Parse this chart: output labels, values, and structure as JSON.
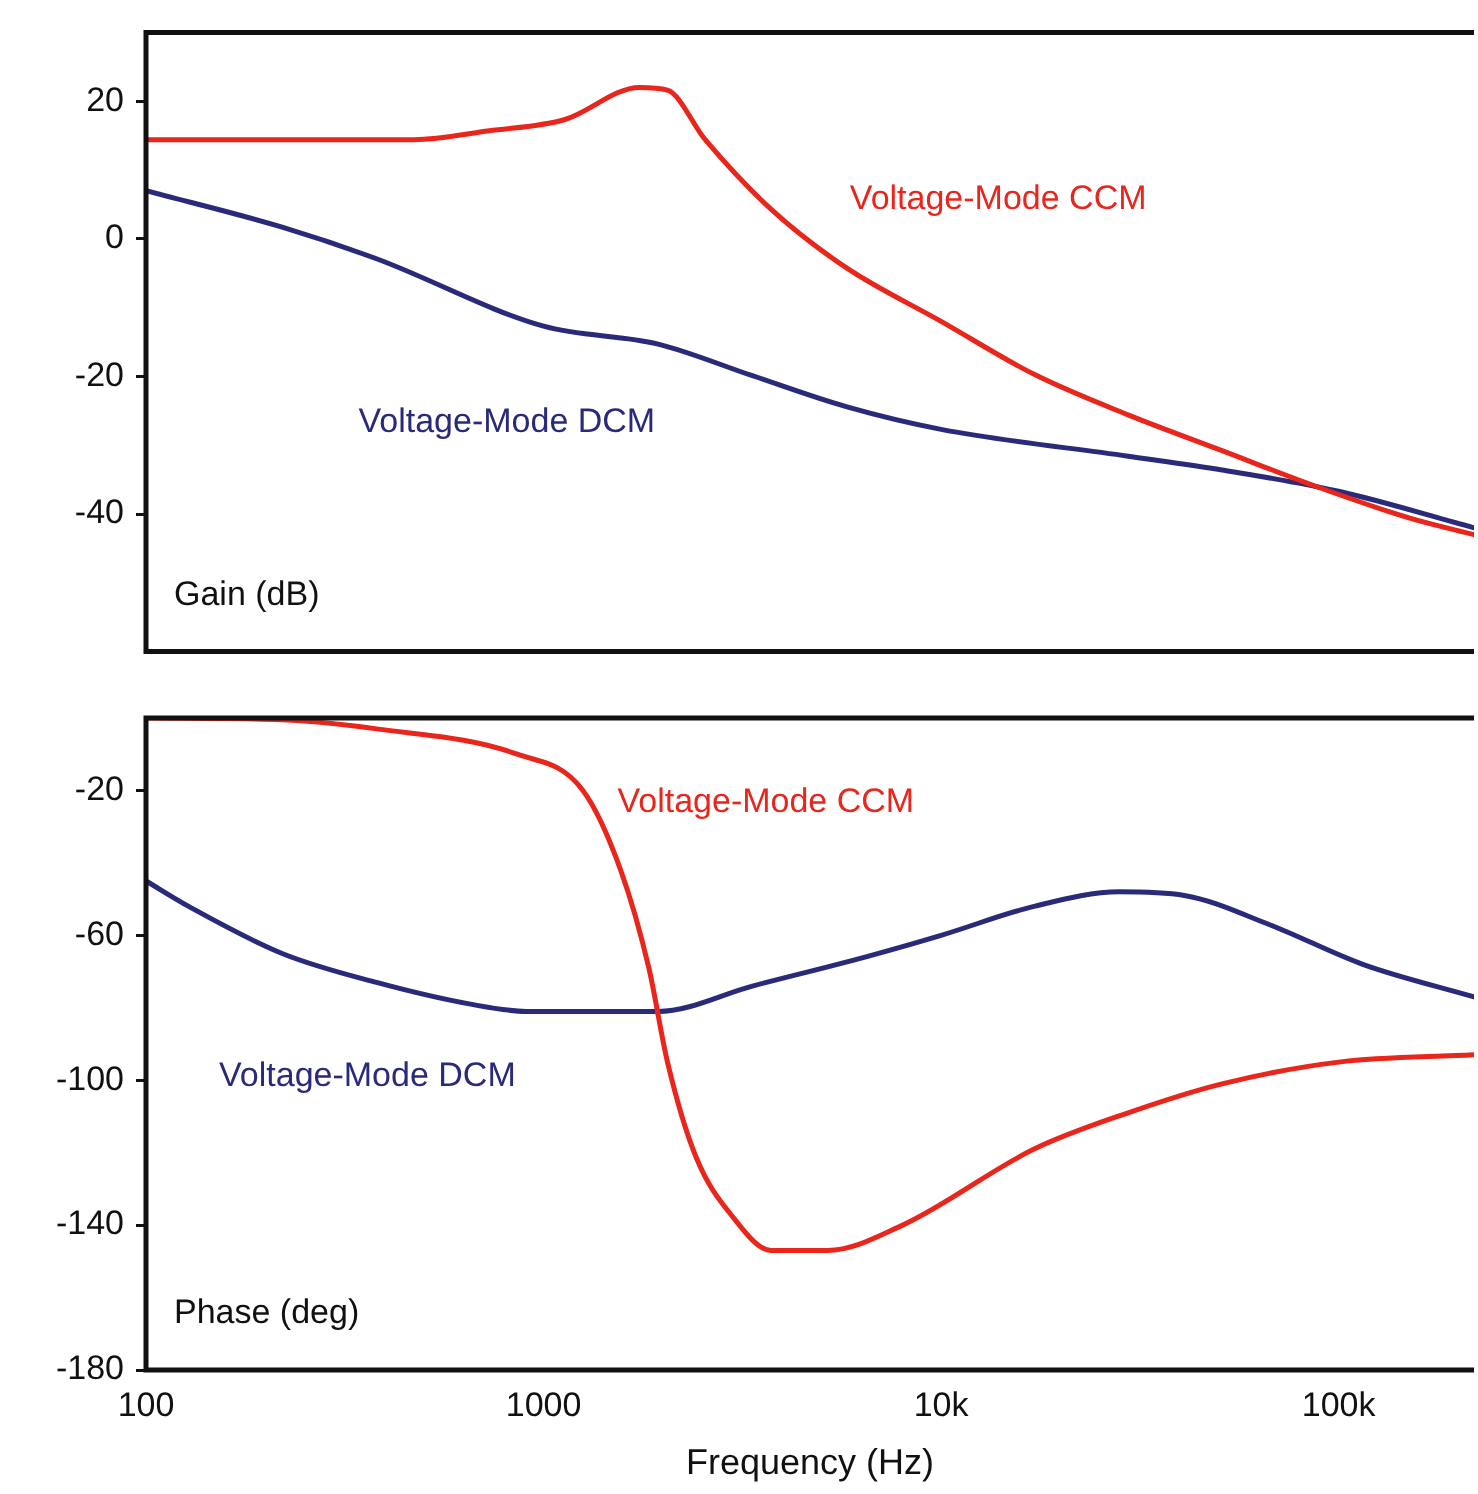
{
  "chart_data": [
    {
      "type": "line",
      "ylabel": "Gain (dB)",
      "log": "x",
      "xlim": [
        100,
        219000
      ],
      "ylim": [
        -60,
        30
      ],
      "yticks": [
        20,
        0,
        -20,
        -40
      ],
      "tick_labels": "y",
      "grid": false,
      "legend": false,
      "marker": "none",
      "line_style": "solid",
      "series": [
        {
          "name": "Voltage-Mode CCM",
          "color": "#e8261c",
          "x": [
            100,
            472,
            730,
            1127,
            1742,
            2050,
            2551,
            3733,
            5770,
            10000,
            17140,
            29540,
            50900,
            87800,
            151000,
            219000
          ],
          "values": [
            14.4,
            14.4,
            15.7,
            17.3,
            22,
            21.6,
            14.4,
            4.3,
            -4.2,
            -12,
            -19.7,
            -25.6,
            -30.8,
            -36,
            -40.6,
            -43
          ]
        },
        {
          "name": "Voltage-Mode DCM",
          "color": "#2a2a7a",
          "x": [
            100,
            220,
            380,
            1000,
            1942,
            3352,
            5770,
            10000,
            29540,
            50900,
            100000,
            219000
          ],
          "values": [
            7,
            1.7,
            -2.9,
            -12.7,
            -15.3,
            -19.9,
            -24.4,
            -27.7,
            -31.6,
            -33.6,
            -36.7,
            -42
          ]
        }
      ]
    },
    {
      "type": "line",
      "ylabel": "Phase (deg)",
      "xlabel": "Frequency (Hz)",
      "log": "x",
      "xlim": [
        100,
        219000
      ],
      "xticks": [
        100,
        1000,
        {
          "value": 10000,
          "label": "10k"
        },
        {
          "value": 100000,
          "label": "100k"
        }
      ],
      "ylim": [
        -180,
        0
      ],
      "yticks": [
        -20,
        -60,
        -100,
        -140,
        -180
      ],
      "grid": false,
      "legend": false,
      "marker": "none",
      "line_style": "solid",
      "series": [
        {
          "name": "Voltage-Mode CCM",
          "color": "#e8261c",
          "x": [
            100,
            220,
            380,
            859,
            1256,
            1563,
            1840,
            2050,
            2414,
            3006,
            3733,
            5176,
            8004,
            17140,
            29540,
            50900,
            100000,
            219000
          ],
          "values": [
            0,
            -0.5,
            -3,
            -10,
            -20,
            -42,
            -69,
            -95,
            -121,
            -138,
            -147,
            -147,
            -140,
            -119,
            -109,
            -101,
            -95,
            -93
          ]
        },
        {
          "name": "Voltage-Mode DCM",
          "color": "#2a2a7a",
          "x": [
            100,
            128,
            220,
            380,
            655,
            906,
            1942,
            3352,
            6435,
            10000,
            17140,
            27990,
            40920,
            66850,
            115000,
            219000
          ],
          "values": [
            -45,
            -52,
            -65,
            -73,
            -79,
            -81,
            -81,
            -74,
            -66,
            -60,
            -52,
            -48,
            -49,
            -57,
            -68,
            -77
          ]
        }
      ]
    }
  ]
}
